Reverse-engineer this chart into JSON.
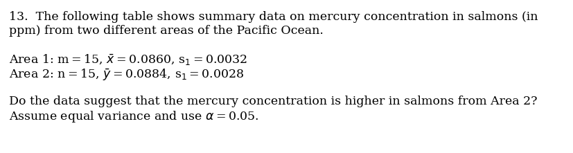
{
  "background_color": "#ffffff",
  "font_size": 12.5,
  "line1": "13.  The following table shows summary data on mercury concentration in salmons (in",
  "line2": "ppm) from two different areas of the Pacific Ocean.",
  "line3": "Area 1: m = 15, $\\bar{x}$ = 0.0860, s$_1$ = 0.0032",
  "line4": "Area 2: n = 15, $\\bar{y}$ = 0.0884, s$_1$ = 0.0028",
  "line5": "Do the data suggest that the mercury concentration is higher in salmons from Area 2?",
  "line6": "Assume equal variance and use $\\alpha$ = 0.05."
}
